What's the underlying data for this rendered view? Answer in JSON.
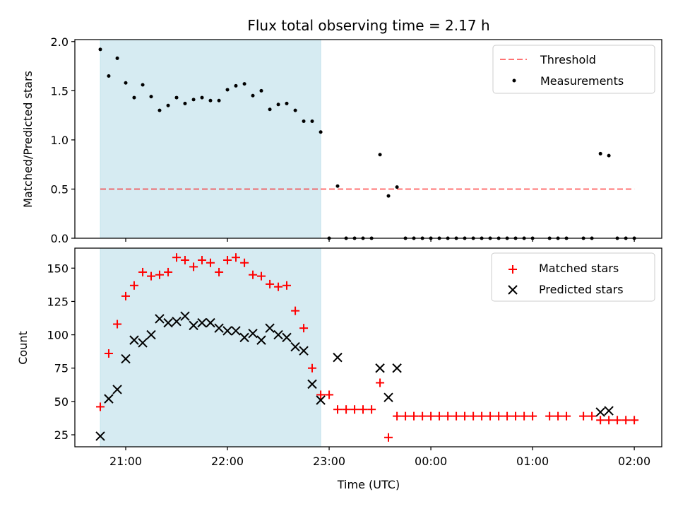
{
  "figure": {
    "title": "Flux total observing time = 2.17 h",
    "xlabel": "Time (UTC)",
    "xticks": [
      {
        "t": 21.0,
        "label": "21:00"
      },
      {
        "t": 22.0,
        "label": "22:00"
      },
      {
        "t": 23.0,
        "label": "23:00"
      },
      {
        "t": 24.0,
        "label": "00:00"
      },
      {
        "t": 25.0,
        "label": "01:00"
      },
      {
        "t": 26.0,
        "label": "02:00"
      }
    ],
    "shaded_interval": {
      "start": 20.75,
      "end": 22.917,
      "color": "#add8e6"
    },
    "colors": {
      "threshold": "#ff0000",
      "matched": "#ff0000",
      "predicted": "#000000",
      "measurements": "#000000"
    }
  },
  "chart_data": [
    {
      "type": "scatter",
      "ylabel": "Matched/Predicted stars",
      "xlim": [
        20.5,
        26.27
      ],
      "ylim": [
        0,
        2.02
      ],
      "yticks": [
        {
          "v": 0.0,
          "label": "0.0"
        },
        {
          "v": 0.5,
          "label": "0.5"
        },
        {
          "v": 1.0,
          "label": "1.0"
        },
        {
          "v": 1.5,
          "label": "1.5"
        },
        {
          "v": 2.0,
          "label": "2.0"
        }
      ],
      "legend": {
        "position": "top-right",
        "threshold_label": "Threshold",
        "measurements_label": "Measurements"
      },
      "threshold": {
        "value": 0.5,
        "x_start": 20.75,
        "x_end": 26.0
      },
      "measurements": {
        "x": [
          20.75,
          20.833,
          20.917,
          21.0,
          21.083,
          21.167,
          21.25,
          21.333,
          21.417,
          21.5,
          21.583,
          21.667,
          21.75,
          21.833,
          21.917,
          22.0,
          22.083,
          22.167,
          22.25,
          22.333,
          22.417,
          22.5,
          22.583,
          22.667,
          22.75,
          22.833,
          22.917,
          23.0,
          23.083,
          23.167,
          23.25,
          23.333,
          23.417,
          23.5,
          23.583,
          23.667,
          23.75,
          23.833,
          23.917,
          24.0,
          24.083,
          24.167,
          24.25,
          24.333,
          24.417,
          24.5,
          24.583,
          24.667,
          24.75,
          24.833,
          24.917,
          25.0,
          25.167,
          25.25,
          25.333,
          25.5,
          25.583,
          25.667,
          25.75,
          25.833,
          25.917,
          26.0
        ],
        "y": [
          1.92,
          1.65,
          1.83,
          1.58,
          1.43,
          1.56,
          1.44,
          1.3,
          1.35,
          1.43,
          1.37,
          1.41,
          1.43,
          1.4,
          1.4,
          1.51,
          1.55,
          1.57,
          1.45,
          1.5,
          1.31,
          1.36,
          1.37,
          1.3,
          1.19,
          1.19,
          1.08,
          0.0,
          0.53,
          0.0,
          0.0,
          0.0,
          0.0,
          0.85,
          0.43,
          0.52,
          0.0,
          0.0,
          0.0,
          0.0,
          0.0,
          0.0,
          0.0,
          0.0,
          0.0,
          0.0,
          0.0,
          0.0,
          0.0,
          0.0,
          0.0,
          0.0,
          0.0,
          0.0,
          0.0,
          0.0,
          0.0,
          0.86,
          0.84,
          0.0,
          0.0,
          0.0
        ]
      }
    },
    {
      "type": "scatter",
      "ylabel": "Count",
      "xlim": [
        20.5,
        26.27
      ],
      "ylim": [
        16,
        165
      ],
      "yticks": [
        {
          "v": 25,
          "label": "25"
        },
        {
          "v": 50,
          "label": "50"
        },
        {
          "v": 75,
          "label": "75"
        },
        {
          "v": 100,
          "label": "100"
        },
        {
          "v": 125,
          "label": "125"
        },
        {
          "v": 150,
          "label": "150"
        }
      ],
      "legend": {
        "position": "top-right",
        "matched_label": "Matched stars",
        "predicted_label": "Predicted stars"
      },
      "matched": {
        "x": [
          20.75,
          20.833,
          20.917,
          21.0,
          21.083,
          21.167,
          21.25,
          21.333,
          21.417,
          21.5,
          21.583,
          21.667,
          21.75,
          21.833,
          21.917,
          22.0,
          22.083,
          22.167,
          22.25,
          22.333,
          22.417,
          22.5,
          22.583,
          22.667,
          22.75,
          22.833,
          22.917,
          23.0,
          23.083,
          23.167,
          23.25,
          23.333,
          23.417,
          23.5,
          23.583,
          23.667,
          23.75,
          23.833,
          23.917,
          24.0,
          24.083,
          24.167,
          24.25,
          24.333,
          24.417,
          24.5,
          24.583,
          24.667,
          24.75,
          24.833,
          24.917,
          25.0,
          25.167,
          25.25,
          25.333,
          25.5,
          25.583,
          25.667,
          25.75,
          25.833,
          25.917,
          26.0
        ],
        "y": [
          46,
          86,
          108,
          129,
          137,
          147,
          144,
          145,
          147,
          158,
          156,
          151,
          156,
          154,
          147,
          156,
          158,
          154,
          145,
          144,
          138,
          136,
          137,
          118,
          105,
          75,
          55,
          55,
          44,
          44,
          44,
          44,
          44,
          64,
          23,
          39,
          39,
          39,
          39,
          39,
          39,
          39,
          39,
          39,
          39,
          39,
          39,
          39,
          39,
          39,
          39,
          39,
          39,
          39,
          39,
          39,
          39,
          36,
          36,
          36,
          36,
          36
        ]
      },
      "predicted": {
        "x": [
          20.75,
          20.833,
          20.917,
          21.0,
          21.083,
          21.167,
          21.25,
          21.333,
          21.417,
          21.5,
          21.583,
          21.667,
          21.75,
          21.833,
          21.917,
          22.0,
          22.083,
          22.167,
          22.25,
          22.333,
          22.417,
          22.5,
          22.583,
          22.667,
          22.75,
          22.833,
          22.917,
          23.083,
          23.5,
          23.583,
          23.667,
          25.667,
          25.75
        ],
        "y": [
          24,
          52,
          59,
          82,
          96,
          94,
          100,
          112,
          109,
          110,
          114,
          107,
          109,
          109,
          105,
          103,
          103,
          98,
          101,
          96,
          105,
          100,
          98,
          91,
          88,
          63,
          51,
          83,
          75,
          53,
          75,
          42,
          43
        ]
      }
    }
  ]
}
